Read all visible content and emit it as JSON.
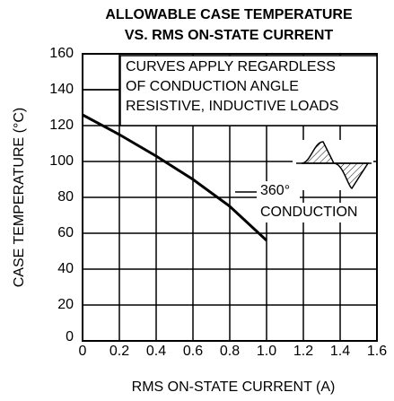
{
  "chart_data": {
    "type": "line",
    "title": [
      "ALLOWABLE CASE TEMPERATURE",
      "VS. RMS ON-STATE CURRENT"
    ],
    "x_label": "RMS ON-STATE CURRENT  (A)",
    "y_label": "CASE TEMPERATURE  (°C)",
    "annotations": [
      "CURVES APPLY REGARDLESS",
      "OF CONDUCTION ANGLE",
      "RESISTIVE, INDUCTIVE LOADS",
      "360°",
      "CONDUCTION"
    ],
    "x": [
      0,
      0.2,
      0.4,
      0.6,
      0.8,
      1
    ],
    "series": [
      {
        "color": "#000000",
        "values": [
          126,
          115,
          103,
          90,
          75,
          56
        ]
      }
    ],
    "xlim": [
      0,
      1.6
    ],
    "xticks": [
      0,
      0.2,
      0.4,
      0.6,
      0.8,
      {
        "value": 1,
        "label": "1.0"
      },
      1.2,
      1.4,
      1.6
    ],
    "ylim": [
      0,
      160
    ],
    "yticks": [
      0,
      20,
      40,
      60,
      80,
      100,
      120,
      140,
      160
    ],
    "grid": true
  }
}
